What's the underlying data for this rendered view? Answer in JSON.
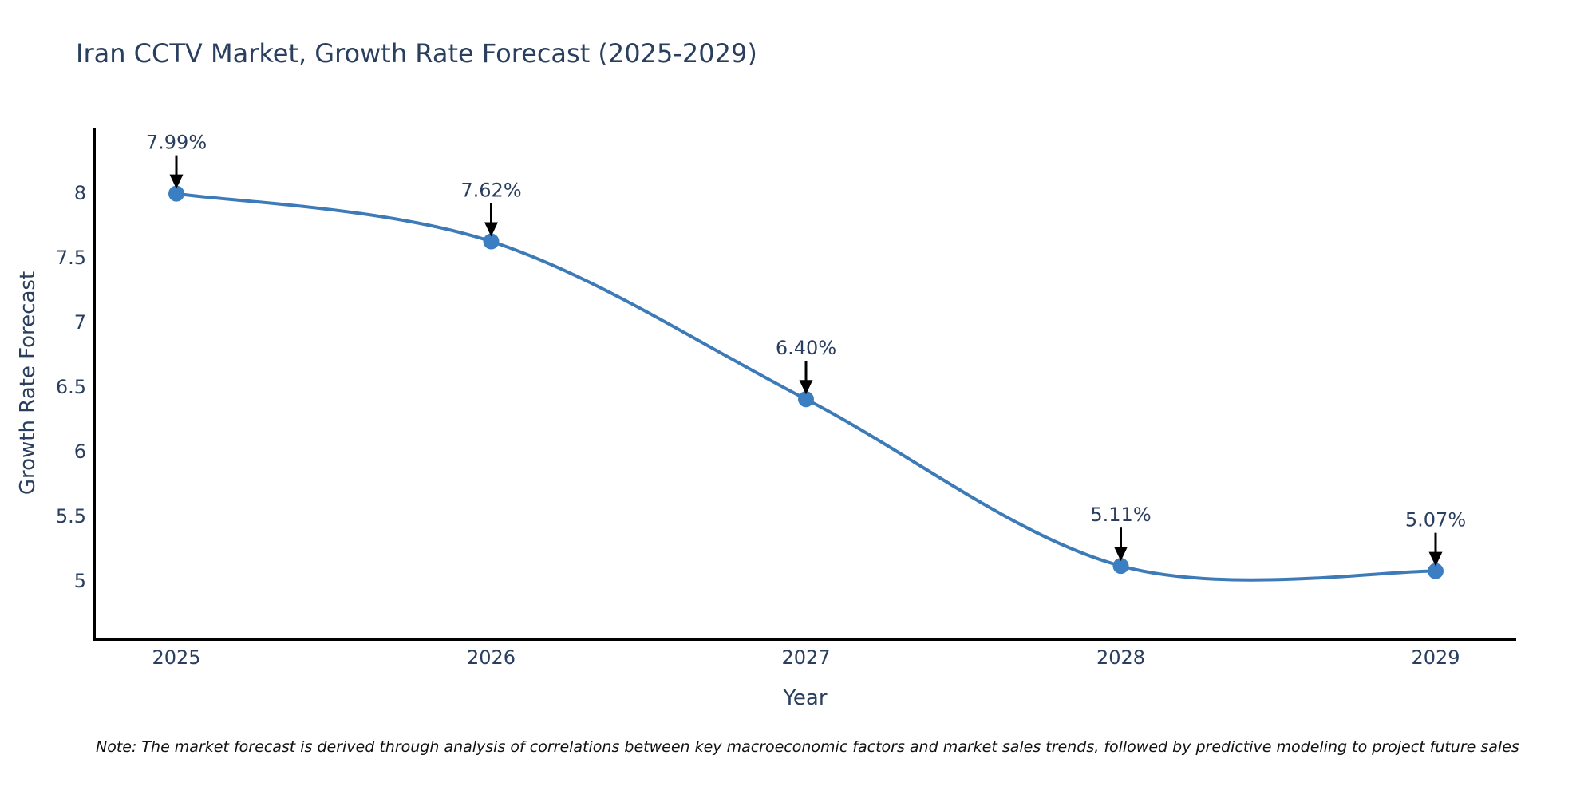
{
  "note": "Note: The market forecast is derived through analysis of correlations between key macroeconomic factors and market sales trends, followed by predictive modeling to project future sales",
  "chart_data": {
    "type": "line",
    "curve": "spline",
    "title": "Iran CCTV Market, Growth Rate Forecast (2025-2029)",
    "xlabel": "Year",
    "ylabel": "Growth Rate Forecast",
    "x": [
      2025,
      2026,
      2027,
      2028,
      2029
    ],
    "series": [
      {
        "name": "Growth Rate Forecast",
        "values": [
          7.99,
          7.62,
          6.4,
          5.11,
          5.07
        ]
      }
    ],
    "point_labels": [
      "7.99%",
      "7.62%",
      "6.40%",
      "5.11%",
      "5.07%"
    ],
    "yticks": [
      8,
      7.5,
      7,
      6.5,
      6,
      5.5,
      5
    ],
    "xticks": [
      "2025",
      "2026",
      "2027",
      "2028",
      "2029"
    ],
    "ylim": [
      4.55,
      8.5
    ],
    "xlim": [
      2024.74,
      2029.26
    ],
    "grid": false,
    "legend": false,
    "colors": {
      "line": "#3d7ab8",
      "marker": "#3b7ec1",
      "axis": "#000000",
      "text": "#2a3f5f",
      "annotation_arrow": "#000000"
    }
  }
}
